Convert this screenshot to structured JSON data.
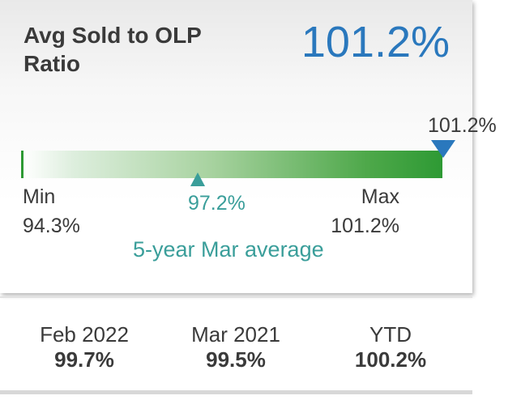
{
  "card": {
    "title": "Avg Sold to OLP Ratio",
    "value": "101.2%",
    "accent_color": "#2a78bd"
  },
  "gauge": {
    "current_label": "101.2%",
    "current_value": 101.2,
    "min_label": "Min",
    "min_value": "94.3%",
    "max_label": "Max",
    "max_value": "101.2%",
    "average_value": "97.2%",
    "average_caption": "5-year Mar average",
    "average_color": "#3a9e9a",
    "bar_color": "#2e9a34"
  },
  "stats": [
    {
      "label": "Feb 2022",
      "value": "99.7%"
    },
    {
      "label": "Mar 2021",
      "value": "99.5%"
    },
    {
      "label": "YTD",
      "value": "100.2%"
    }
  ]
}
